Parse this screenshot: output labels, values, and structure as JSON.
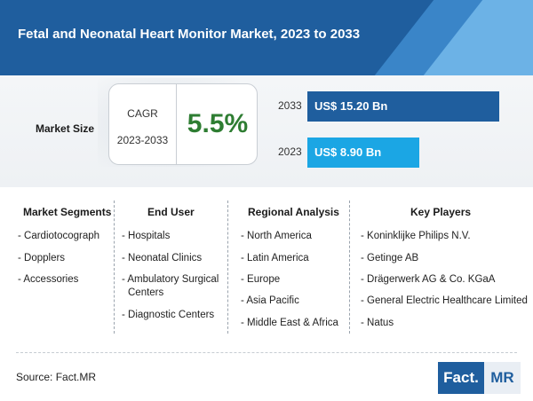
{
  "header": {
    "title": "Fetal and Neonatal Heart Monitor Market, 2023 to 2033"
  },
  "market_size": {
    "label": "Market Size",
    "cagr_label": "CAGR",
    "cagr_period": "2023-2033",
    "cagr_value": "5.5%",
    "bars": [
      {
        "year": "2033",
        "value_label": "US$ 15.20 Bn",
        "value": 15.2
      },
      {
        "year": "2023",
        "value_label": "US$ 8.90 Bn",
        "value": 8.9
      }
    ]
  },
  "columns": [
    {
      "heading": "Market Segments",
      "items": [
        "- Cardiotocograph",
        "- Dopplers",
        "- Accessories"
      ]
    },
    {
      "heading": "End User",
      "items": [
        "- Hospitals",
        "- Neonatal Clinics",
        "- Ambulatory Surgical",
        "Centers",
        "- Diagnostic Centers"
      ]
    },
    {
      "heading": "Regional Analysis",
      "items": [
        "- North America",
        "- Latin America",
        "- Europe",
        "- Asia Pacific",
        "- Middle East & Africa"
      ]
    },
    {
      "heading": "Key Players",
      "items": [
        "- Koninklijke Philips N.V.",
        "- Getinge AB",
        "- Drägerwerk AG & Co. KGaA",
        "- General Electric Healthcare Limited",
        "- Natus"
      ]
    }
  ],
  "footer": {
    "source": "Source: Fact.MR",
    "logo_left": "Fact.",
    "logo_right": "MR"
  },
  "colors": {
    "primary": "#1f5e9e",
    "accent": "#1ba6e4",
    "cagr": "#2e7d32"
  }
}
